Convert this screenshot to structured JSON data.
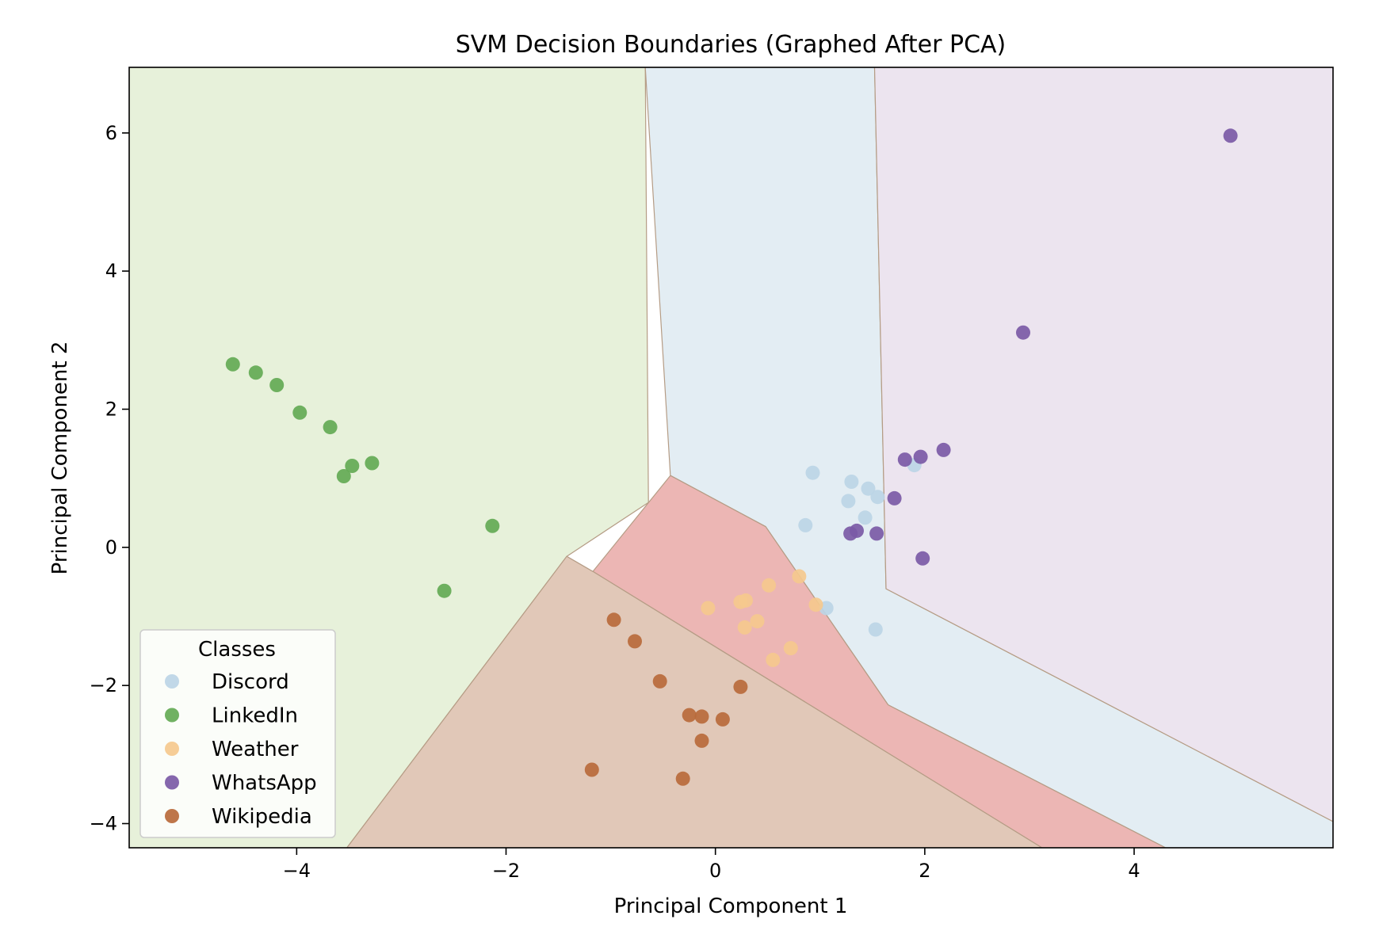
{
  "chart_data": {
    "type": "scatter",
    "title": "SVM Decision Boundaries (Graphed After PCA)",
    "xlabel": "Principal Component 1",
    "ylabel": "Principal Component 2",
    "xlim": [
      -5.6,
      5.9
    ],
    "ylim": [
      -4.35,
      6.95
    ],
    "xticks": [
      -4,
      -2,
      0,
      2,
      4
    ],
    "yticks": [
      -4,
      -2,
      0,
      2,
      4,
      6
    ],
    "xtick_labels": [
      "−4",
      "−2",
      "0",
      "2",
      "4"
    ],
    "ytick_labels": [
      "−4",
      "−2",
      "0",
      "2",
      "4",
      "6"
    ],
    "grid": false,
    "legend": {
      "title": "Classes",
      "placement": "lower-left"
    },
    "regions": [
      {
        "class": "LinkedIn",
        "color": "#e7f1da",
        "polygon": [
          [
            -5.6,
            6.95
          ],
          [
            -0.67,
            6.95
          ],
          [
            -0.64,
            0.65
          ],
          [
            -1.42,
            -0.13
          ],
          [
            -3.52,
            -4.35
          ],
          [
            -5.6,
            -4.35
          ]
        ]
      },
      {
        "class": "Discord",
        "color": "#e3edf3",
        "polygon": [
          [
            -0.67,
            6.95
          ],
          [
            1.52,
            6.95
          ],
          [
            1.63,
            -0.6
          ],
          [
            5.9,
            -3.97
          ],
          [
            5.9,
            -4.35
          ],
          [
            4.3,
            -4.35
          ],
          [
            1.65,
            -2.28
          ],
          [
            0.48,
            0.3
          ],
          [
            -0.43,
            1.04
          ]
        ]
      },
      {
        "class": "WhatsApp",
        "color": "#ece4ef",
        "polygon": [
          [
            1.52,
            6.95
          ],
          [
            5.9,
            6.95
          ],
          [
            5.9,
            -3.97
          ],
          [
            1.63,
            -0.6
          ]
        ]
      },
      {
        "class": "Weather",
        "color": "#ecb6b4",
        "polygon": [
          [
            -0.43,
            1.04
          ],
          [
            0.48,
            0.3
          ],
          [
            1.65,
            -2.28
          ],
          [
            4.3,
            -4.35
          ],
          [
            3.12,
            -4.35
          ],
          [
            -1.17,
            -0.35
          ]
        ]
      },
      {
        "class": "Wikipedia",
        "color": "#e1c8b8",
        "polygon": [
          [
            -1.42,
            -0.13
          ],
          [
            -1.17,
            -0.35
          ],
          [
            3.12,
            -4.35
          ],
          [
            -3.52,
            -4.35
          ]
        ]
      }
    ],
    "series": [
      {
        "name": "Discord",
        "color": "#bcd5e6",
        "points": [
          [
            0.93,
            1.08
          ],
          [
            1.3,
            0.95
          ],
          [
            1.46,
            0.85
          ],
          [
            1.55,
            0.73
          ],
          [
            1.9,
            1.19
          ],
          [
            1.27,
            0.67
          ],
          [
            1.43,
            0.43
          ],
          [
            0.86,
            0.32
          ],
          [
            1.06,
            -0.88
          ],
          [
            1.53,
            -1.19
          ]
        ]
      },
      {
        "name": "LinkedIn",
        "color": "#64aa55",
        "points": [
          [
            -4.61,
            2.65
          ],
          [
            -4.39,
            2.53
          ],
          [
            -4.19,
            2.35
          ],
          [
            -3.97,
            1.95
          ],
          [
            -3.68,
            1.74
          ],
          [
            -3.47,
            1.18
          ],
          [
            -3.55,
            1.03
          ],
          [
            -3.28,
            1.22
          ],
          [
            -2.13,
            0.31
          ],
          [
            -2.59,
            -0.63
          ]
        ]
      },
      {
        "name": "Weather",
        "color": "#f5c98e",
        "points": [
          [
            -0.07,
            -0.88
          ],
          [
            0.24,
            -0.79
          ],
          [
            0.29,
            -0.77
          ],
          [
            0.51,
            -0.55
          ],
          [
            0.8,
            -0.42
          ],
          [
            0.96,
            -0.83
          ],
          [
            0.4,
            -1.07
          ],
          [
            0.28,
            -1.16
          ],
          [
            0.72,
            -1.46
          ],
          [
            0.55,
            -1.63
          ]
        ]
      },
      {
        "name": "WhatsApp",
        "color": "#7b5aa6",
        "points": [
          [
            4.92,
            5.96
          ],
          [
            2.94,
            3.11
          ],
          [
            1.81,
            1.27
          ],
          [
            1.96,
            1.31
          ],
          [
            2.18,
            1.41
          ],
          [
            1.71,
            0.71
          ],
          [
            1.35,
            0.24
          ],
          [
            1.29,
            0.2
          ],
          [
            1.54,
            0.2
          ],
          [
            1.98,
            -0.16
          ]
        ]
      },
      {
        "name": "Wikipedia",
        "color": "#b86a3b",
        "points": [
          [
            -0.97,
            -1.05
          ],
          [
            -0.77,
            -1.36
          ],
          [
            -0.53,
            -1.94
          ],
          [
            0.24,
            -2.02
          ],
          [
            -0.25,
            -2.43
          ],
          [
            -0.13,
            -2.45
          ],
          [
            0.07,
            -2.49
          ],
          [
            -0.13,
            -2.8
          ],
          [
            -1.18,
            -3.22
          ],
          [
            -0.31,
            -3.35
          ]
        ]
      }
    ]
  }
}
